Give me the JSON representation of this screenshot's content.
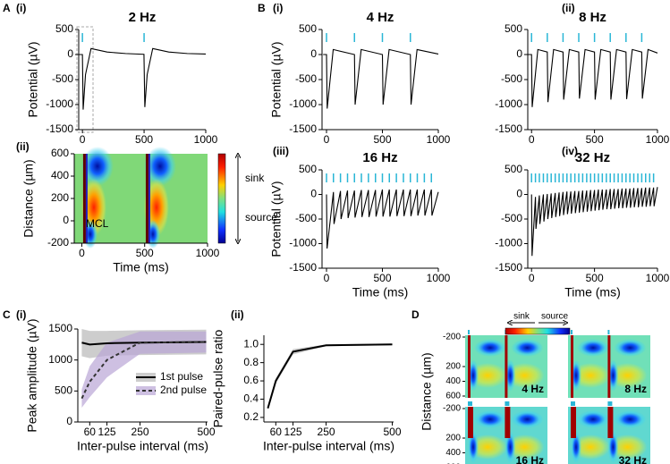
{
  "chart_data": [
    {
      "type": "line",
      "panel_label": "A",
      "sub_label": "(i)",
      "title": "2 Hz",
      "ylabel": "Potential (µV)",
      "x": [
        -30,
        0,
        6,
        25,
        70,
        200,
        350,
        499,
        506,
        525,
        570,
        700,
        850,
        1000
      ],
      "values": [
        0,
        0,
        -1100,
        -400,
        120,
        50,
        20,
        5,
        -1050,
        -400,
        120,
        50,
        20,
        10
      ],
      "color": "#000000",
      "stimuli": [
        0,
        500
      ],
      "stim_color": "#29b6d6",
      "xlim": [
        -30,
        1000
      ],
      "xticks": [
        0,
        500,
        1000
      ],
      "ylim": [
        -1500,
        500
      ],
      "yticks": [
        -1500,
        -1000,
        -500,
        0,
        500
      ]
    },
    {
      "type": "heatmap",
      "sub_label": "(ii)",
      "xlabel": "Time (ms)",
      "ylabel": "Distance (µm)",
      "annotation": "MCL",
      "colorbar_labels": [
        "sink",
        "source"
      ],
      "xlim": [
        -60,
        1000
      ],
      "xticks": [
        0,
        500,
        1000
      ],
      "ylim": [
        -200,
        600
      ],
      "yticks": [
        -200,
        0,
        200,
        400,
        600
      ]
    },
    {
      "type": "line",
      "panel_label": "B",
      "sub_label": "(i)",
      "title": "4 Hz",
      "ylabel": "Potential (µV)",
      "x": [
        -30,
        0,
        6,
        60,
        250,
        256,
        310,
        500,
        506,
        560,
        750,
        756,
        810,
        1000
      ],
      "values": [
        0,
        0,
        -1080,
        100,
        0,
        -1000,
        100,
        0,
        -1000,
        100,
        0,
        -1000,
        100,
        10
      ],
      "color": "#000000",
      "stimuli": [
        0,
        250,
        500,
        750
      ],
      "stim_color": "#29b6d6",
      "xlim": [
        -40,
        1000
      ],
      "xticks": [
        0,
        500,
        1000
      ],
      "ylim": [
        -1500,
        500
      ],
      "yticks": [
        -1500,
        -1000,
        -500,
        0,
        500
      ]
    },
    {
      "type": "line",
      "sub_label": "(ii)",
      "title": "8 Hz",
      "x": [
        -30,
        0,
        5,
        50,
        125,
        130,
        175,
        250,
        255,
        300,
        375,
        380,
        425,
        500,
        505,
        550,
        625,
        630,
        675,
        750,
        755,
        800,
        875,
        880,
        925,
        1000
      ],
      "values": [
        0,
        0,
        -1050,
        100,
        50,
        -950,
        100,
        50,
        -900,
        100,
        50,
        -880,
        100,
        50,
        -900,
        100,
        50,
        -900,
        100,
        50,
        -890,
        100,
        50,
        -880,
        100,
        30
      ],
      "color": "#000000",
      "stimuli": [
        0,
        125,
        250,
        375,
        500,
        625,
        750,
        875
      ],
      "stim_color": "#29b6d6",
      "xlim": [
        -30,
        1000
      ],
      "xticks": [
        0,
        500,
        1000
      ],
      "ylim": [
        -1500,
        500
      ],
      "yticks": [
        -1500,
        -1000,
        -500,
        0,
        500
      ]
    },
    {
      "type": "line",
      "sub_label": "(iii)",
      "title": "16 Hz",
      "ylabel": "Potential (µV)",
      "xlabel": "Time (ms)",
      "x": [
        0,
        5,
        62,
        67,
        125,
        130,
        188,
        193,
        250,
        255,
        312,
        317,
        375,
        380,
        438,
        443,
        500,
        505,
        562,
        567,
        625,
        630,
        688,
        693,
        750,
        755,
        812,
        817,
        875,
        880,
        938,
        943,
        1000
      ],
      "values": [
        0,
        -1100,
        50,
        -600,
        70,
        -500,
        80,
        -480,
        80,
        -470,
        90,
        -460,
        90,
        -460,
        90,
        -450,
        100,
        -450,
        100,
        -450,
        100,
        -440,
        100,
        -440,
        100,
        -440,
        100,
        -430,
        100,
        -430,
        100,
        -430,
        50
      ],
      "color": "#000000",
      "stimuli": [
        0,
        62,
        125,
        188,
        250,
        312,
        375,
        438,
        500,
        562,
        625,
        688,
        750,
        812,
        875,
        938
      ],
      "stim_color": "#29b6d6",
      "xlim": [
        -40,
        1000
      ],
      "xticks": [
        0,
        500,
        1000
      ],
      "ylim": [
        -1500,
        500
      ],
      "yticks": [
        -1500,
        -1000,
        -500,
        0,
        500
      ]
    },
    {
      "type": "line",
      "sub_label": "(iv)",
      "title": "32 Hz",
      "xlabel": "Time (ms)",
      "x": [
        0,
        4,
        31,
        35,
        62,
        66,
        94,
        98,
        125,
        129,
        156,
        160,
        188,
        192,
        219,
        223,
        250,
        254,
        281,
        285,
        312,
        316,
        344,
        348,
        375,
        379,
        406,
        410,
        438,
        442,
        469,
        473,
        500,
        504,
        531,
        535,
        562,
        566,
        594,
        598,
        625,
        629,
        656,
        660,
        688,
        692,
        719,
        723,
        750,
        754,
        781,
        785,
        812,
        816,
        844,
        848,
        875,
        879,
        906,
        910,
        938,
        942,
        969,
        973,
        1000
      ],
      "values": [
        0,
        -1250,
        -50,
        -700,
        -20,
        -600,
        0,
        -550,
        10,
        -500,
        20,
        -480,
        30,
        -460,
        40,
        -440,
        50,
        -420,
        60,
        -400,
        60,
        -390,
        70,
        -380,
        70,
        -370,
        80,
        -360,
        80,
        -350,
        90,
        -340,
        90,
        -330,
        100,
        -320,
        100,
        -310,
        100,
        -300,
        110,
        -300,
        110,
        -290,
        110,
        -280,
        120,
        -280,
        120,
        -270,
        120,
        -270,
        130,
        -260,
        130,
        -260,
        130,
        -250,
        140,
        -250,
        140,
        -240,
        140,
        -240,
        150
      ],
      "color": "#000000",
      "stimuli": [
        0,
        31,
        62,
        94,
        125,
        156,
        188,
        219,
        250,
        281,
        312,
        344,
        375,
        406,
        438,
        469,
        500,
        531,
        562,
        594,
        625,
        656,
        688,
        719,
        750,
        781,
        812,
        844,
        875,
        906,
        938,
        969
      ],
      "stim_color": "#29b6d6",
      "xlim": [
        -30,
        1000
      ],
      "xticks": [
        0,
        500,
        1000
      ],
      "ylim": [
        -1500,
        500
      ],
      "yticks": [
        -1500,
        -1000,
        -500,
        0,
        500
      ]
    },
    {
      "type": "line",
      "panel_label": "C",
      "sub_label": "(i)",
      "ylabel": "Peak amplitude (µV)",
      "xlabel": "Inter-pulse interval (ms)",
      "x": [
        30,
        60,
        125,
        250,
        500
      ],
      "series": [
        {
          "name": "1st pulse",
          "color": "#000000",
          "band_color": "#b8b8b8",
          "values": [
            1280,
            1250,
            1270,
            1280,
            1290
          ],
          "errors": [
            220,
            220,
            200,
            200,
            200
          ]
        },
        {
          "name": "2nd pulse",
          "color": "#333333",
          "band_color": "#b9a5d6",
          "dash": true,
          "values": [
            380,
            650,
            1000,
            1280,
            1290
          ],
          "errors": [
            150,
            250,
            280,
            180,
            170
          ]
        }
      ],
      "legend": "lower right",
      "xlim": [
        15,
        505
      ],
      "xticks": [
        60,
        125,
        250,
        500
      ],
      "ylim": [
        0,
        1500
      ],
      "yticks": [
        0,
        500,
        1000,
        1500
      ]
    },
    {
      "type": "line",
      "sub_label": "(ii)",
      "ylabel": "Paired-pulse ratio",
      "xlabel": "Inter-pulse interval (ms)",
      "x": [
        30,
        60,
        125,
        250,
        500
      ],
      "series": [
        {
          "color": "#000000",
          "band_color": "#bbbbbb",
          "values": [
            0.3,
            0.6,
            0.92,
            0.99,
            1.0
          ],
          "errors": [
            0.02,
            0.03,
            0.03,
            0.01,
            0.01
          ]
        }
      ],
      "xlim": [
        15,
        505
      ],
      "xticks": [
        60,
        125,
        250,
        500
      ],
      "ylim": [
        0.15,
        1.1
      ],
      "yticks": [
        0.2,
        0.4,
        0.6,
        0.8,
        {
          "value": 1,
          "label": "1.0"
        }
      ]
    },
    {
      "type": "heatmap_grid",
      "panel_label": "D",
      "ylabel": "Distance (µm)",
      "colorbar_labels": [
        "sink",
        "source"
      ],
      "panels": [
        "4 Hz",
        "8 Hz",
        "16 Hz",
        "32 Hz"
      ],
      "ylim": [
        -200,
        600
      ],
      "yticks": [
        -200,
        200,
        400,
        600
      ]
    }
  ]
}
